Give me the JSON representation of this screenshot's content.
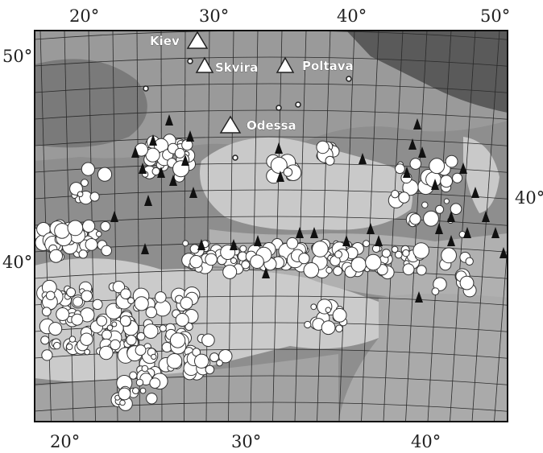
{
  "map": {
    "graticule_step_deg": 2,
    "ticks": {
      "top": [
        "20°",
        "30°",
        "40°",
        "50°"
      ],
      "bottom": [
        "20°",
        "30°",
        "40°"
      ],
      "left": [
        "50°",
        "40°"
      ],
      "right": [
        "40°"
      ]
    },
    "stations": [
      {
        "name": "Kiev"
      },
      {
        "name": "Skvira"
      },
      {
        "name": "Poltava"
      },
      {
        "name": "Odessa"
      }
    ],
    "marker_legend": {
      "stations": "large white triangles",
      "events_triangle": "small black triangles",
      "events_circle": "white circles of varying size"
    },
    "colors": {
      "sea": "#c8c8c8",
      "land_light": "#b8b8b8",
      "land_dark": "#6e6e6e",
      "graticule": "#2a2a2a",
      "station_fill": "#ffffff",
      "event_triangle": "#111111",
      "event_circle": "#ffffff"
    }
  }
}
